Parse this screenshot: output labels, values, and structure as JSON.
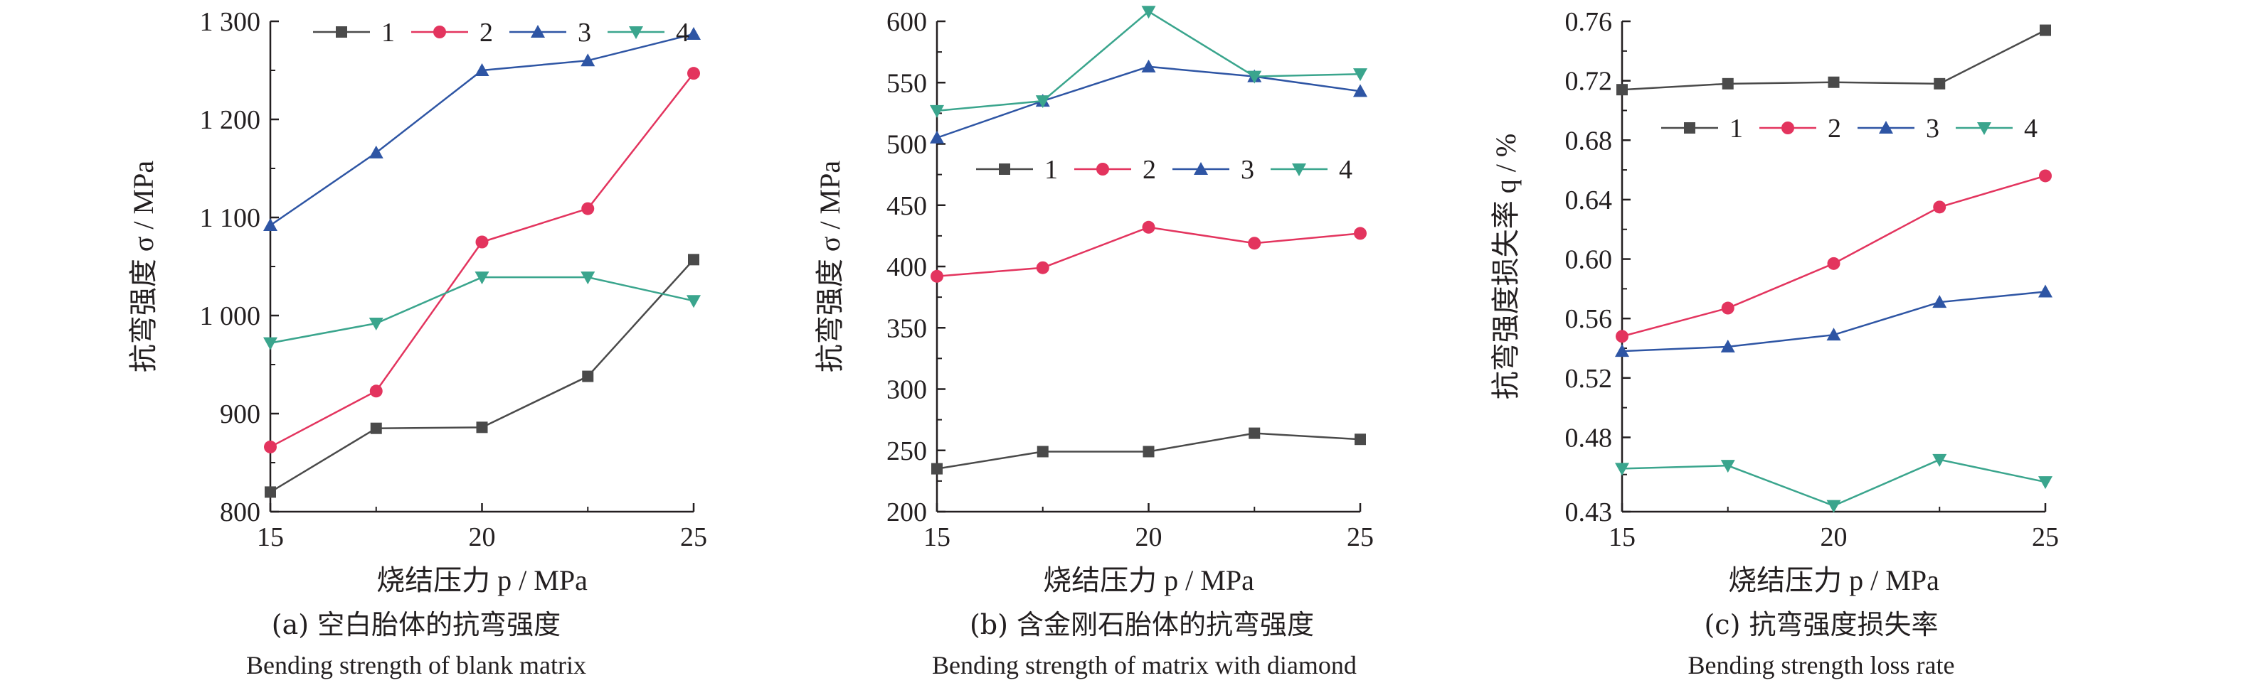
{
  "colors": {
    "axis": "#231f20",
    "series_1": "#4a4a4a",
    "series_2": "#e3345e",
    "series_3": "#2e55a4",
    "series_4": "#3aa58d"
  },
  "chart_data": [
    {
      "type": "line",
      "xlabel": "烧结压力 p / MPa",
      "ylabel": "抗弯强度 σ / MPa",
      "caption_zh": "(a) 空白胎体的抗弯强度",
      "caption_en": "Bending strength of blank matrix",
      "xlim": [
        15,
        25
      ],
      "ylim": [
        800,
        1300
      ],
      "xticks": [
        15,
        20,
        25
      ],
      "xtick_labels": [
        "15",
        "20",
        "25"
      ],
      "yticks": [
        800,
        900,
        1000,
        1100,
        1200,
        1300
      ],
      "ytick_labels": [
        "800",
        "900",
        "1 000",
        "1 100",
        "1 200",
        "1 300"
      ],
      "legend_position": "top",
      "x": [
        15,
        17.5,
        20,
        22.5,
        25
      ],
      "series": [
        {
          "name": "1",
          "marker": "square",
          "values": [
            820,
            885,
            886,
            938,
            1057
          ]
        },
        {
          "name": "2",
          "marker": "circle",
          "values": [
            866,
            923,
            1075,
            1109,
            1247
          ]
        },
        {
          "name": "3",
          "marker": "triangle-up",
          "values": [
            1092,
            1166,
            1250,
            1260,
            1287
          ]
        },
        {
          "name": "4",
          "marker": "triangle-down",
          "values": [
            972,
            992,
            1039,
            1039,
            1015
          ]
        }
      ]
    },
    {
      "type": "line",
      "xlabel": "烧结压力 p / MPa",
      "ylabel": "抗弯强度 σ / MPa",
      "caption_zh": "(b) 含金刚石胎体的抗弯强度",
      "caption_en": "Bending strength of matrix with diamond",
      "xlim": [
        15,
        25
      ],
      "ylim": [
        200,
        600
      ],
      "xticks": [
        15,
        20,
        25
      ],
      "xtick_labels": [
        "15",
        "20",
        "25"
      ],
      "yticks": [
        200,
        250,
        300,
        350,
        400,
        450,
        500,
        550,
        600
      ],
      "ytick_labels": [
        "200",
        "250",
        "300",
        "350",
        "400",
        "450",
        "500",
        "550",
        "600"
      ],
      "legend_position": "middle",
      "x": [
        15,
        17.5,
        20,
        22.5,
        25
      ],
      "series": [
        {
          "name": "1",
          "marker": "square",
          "values": [
            235,
            249,
            249,
            264,
            259
          ]
        },
        {
          "name": "2",
          "marker": "circle",
          "values": [
            392,
            399,
            432,
            419,
            427
          ]
        },
        {
          "name": "3",
          "marker": "triangle-up",
          "values": [
            505,
            535,
            563,
            555,
            543
          ]
        },
        {
          "name": "4",
          "marker": "triangle-down",
          "values": [
            527,
            535,
            608,
            555,
            557
          ]
        }
      ]
    },
    {
      "type": "line",
      "xlabel": "烧结压力 p / MPa",
      "ylabel": "抗弯强度损失率 q / %",
      "caption_zh": "(c) 抗弯强度损失率",
      "caption_en": "Bending strength loss rate",
      "xlim": [
        15,
        25
      ],
      "ylim": [
        0.43,
        0.76
      ],
      "xticks": [
        15,
        20,
        25
      ],
      "xtick_labels": [
        "15",
        "20",
        "25"
      ],
      "yticks": [
        0.43,
        0.48,
        0.52,
        0.56,
        0.6,
        0.64,
        0.68,
        0.72,
        0.76
      ],
      "ytick_labels": [
        "0.43",
        "0.48",
        "0.52",
        "0.56",
        "0.60",
        "0.64",
        "0.68",
        "0.72",
        "0.76"
      ],
      "legend_position": "upper-middle",
      "x": [
        15,
        17.5,
        20,
        22.5,
        25
      ],
      "series": [
        {
          "name": "1",
          "marker": "square",
          "values": [
            0.714,
            0.718,
            0.719,
            0.718,
            0.754
          ]
        },
        {
          "name": "2",
          "marker": "circle",
          "values": [
            0.548,
            0.567,
            0.597,
            0.635,
            0.656
          ]
        },
        {
          "name": "3",
          "marker": "triangle-up",
          "values": [
            0.538,
            0.541,
            0.549,
            0.571,
            0.578
          ]
        },
        {
          "name": "4",
          "marker": "triangle-down",
          "values": [
            0.459,
            0.461,
            0.434,
            0.465,
            0.45
          ]
        }
      ]
    }
  ]
}
